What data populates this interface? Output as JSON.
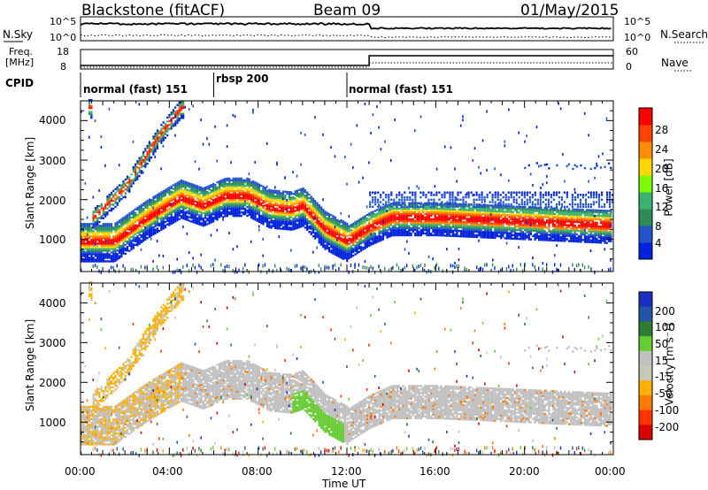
{
  "header": {
    "station": "Blackstone (fitACF)",
    "beam": "Beam 09",
    "date": "01/May/2015"
  },
  "strip_labels": {
    "nsky": "N.Sky",
    "nsearch": "N.Search",
    "freq": "Freq.",
    "freq_unit": "[MHz]",
    "nave": "Nave",
    "cpid": "CPID"
  },
  "strip_ticks": {
    "noise_left_top": "10^5",
    "noise_left_bottom": "10^0",
    "noise_right_top": "10^5",
    "noise_right_bottom": "10^0",
    "freq_left_top": "18",
    "freq_left_bottom": "8",
    "nave_right_top": "60",
    "nave_right_bottom": "0"
  },
  "cpid_segments": [
    {
      "label": "normal (fast) 151",
      "start_hour": 0.0
    },
    {
      "label": "rbsp 200",
      "start_hour": 6.0
    },
    {
      "label": "normal (fast) 151",
      "start_hour": 12.0
    }
  ],
  "colors": {
    "power": [
      "#0022dd",
      "#2255cc",
      "#2e8b57",
      "#3cb371",
      "#7cfc00",
      "#ffd700",
      "#ff8c00",
      "#ff4500",
      "#ff0000"
    ],
    "velocity": [
      "#1a2fbf",
      "#2255aa",
      "#2e7d32",
      "#66cc33",
      "#c0c0c0",
      "#c8c8b8",
      "#ffb000",
      "#ff7a00",
      "#ff3300",
      "#dd0000"
    ]
  },
  "chart_data": [
    {
      "type": "heatmap",
      "name": "power",
      "xlabel": "",
      "ylabel": "Slant Range [km]",
      "x_range_hours": [
        0,
        24
      ],
      "ylim_km": [
        180,
        4500
      ],
      "y_ticks": [
        "1000",
        "2000",
        "3000",
        "4000"
      ],
      "colorbar": {
        "label": "Power [dB]",
        "ticks": [
          "4",
          "8",
          "12",
          "16",
          "20",
          "24",
          "28"
        ]
      },
      "main_band_center_km": [
        {
          "h": 0.0,
          "km": 900
        },
        {
          "h": 1.5,
          "km": 900
        },
        {
          "h": 3.0,
          "km": 1500
        },
        {
          "h": 4.5,
          "km": 2000
        },
        {
          "h": 5.5,
          "km": 1800
        },
        {
          "h": 6.5,
          "km": 2050
        },
        {
          "h": 7.5,
          "km": 2050
        },
        {
          "h": 8.5,
          "km": 1750
        },
        {
          "h": 9.5,
          "km": 1700
        },
        {
          "h": 10.0,
          "km": 1800
        },
        {
          "h": 11.0,
          "km": 1200
        },
        {
          "h": 12.0,
          "km": 900
        },
        {
          "h": 13.0,
          "km": 1250
        },
        {
          "h": 14.0,
          "km": 1500
        },
        {
          "h": 16.0,
          "km": 1500
        },
        {
          "h": 20.0,
          "km": 1400
        },
        {
          "h": 24.0,
          "km": 1300
        }
      ],
      "oblique_feature_km": [
        {
          "h": 0.5,
          "km": 1500
        },
        {
          "h": 2.0,
          "km": 2300
        },
        {
          "h": 3.5,
          "km": 3600
        },
        {
          "h": 4.5,
          "km": 4300
        }
      ]
    },
    {
      "type": "heatmap",
      "name": "velocity",
      "xlabel": "Time UT",
      "ylabel": "Slant Range [km]",
      "x_range_hours": [
        0,
        24
      ],
      "ylim_km": [
        180,
        4500
      ],
      "x_ticks": [
        "00:00",
        "04:00",
        "08:00",
        "12:00",
        "16:00",
        "20:00",
        "00:00"
      ],
      "y_ticks": [
        "1000",
        "2000",
        "3000",
        "4000"
      ],
      "colorbar": {
        "label": "Velocity [m s⁻¹]",
        "ticks": [
          "200",
          "100",
          "50",
          "15",
          "-15",
          "-50",
          "-100",
          "-200"
        ]
      }
    }
  ]
}
